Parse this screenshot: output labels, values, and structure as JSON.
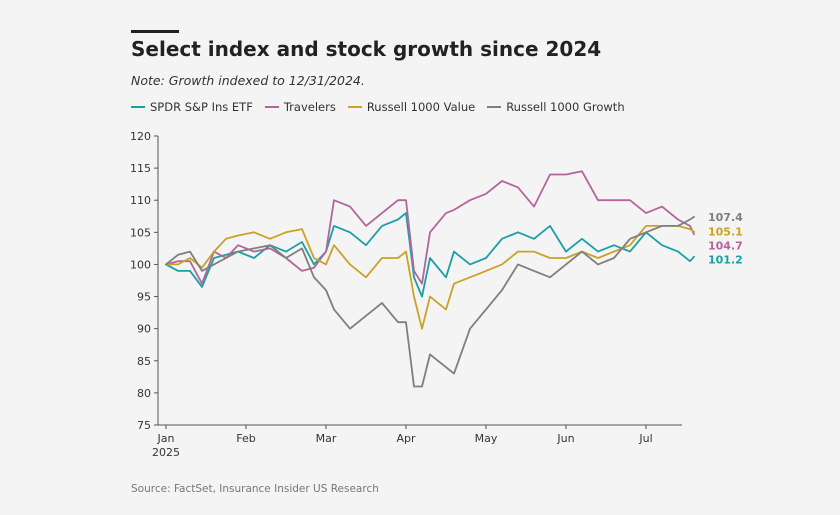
{
  "chart_data": {
    "type": "line",
    "title": "Select index and stock growth since 2024",
    "subtitle": "Note: Growth indexed to 12/31/2024.",
    "source": "Source: FactSet, Insurance Insider US Research",
    "xlabel": "",
    "ylabel": "",
    "ylim": [
      75,
      120
    ],
    "yticks": [
      75,
      80,
      85,
      90,
      95,
      100,
      105,
      110,
      115,
      120
    ],
    "xlim": [
      0,
      6.65
    ],
    "xticks": [
      {
        "pos": 0,
        "label": "Jan",
        "sublabel": "2025"
      },
      {
        "pos": 1,
        "label": "Feb"
      },
      {
        "pos": 2,
        "label": "Mar"
      },
      {
        "pos": 3,
        "label": "Apr"
      },
      {
        "pos": 4,
        "label": "May"
      },
      {
        "pos": 5,
        "label": "Jun"
      },
      {
        "pos": 6,
        "label": "Jul"
      }
    ],
    "grid": false,
    "legend_position": "top",
    "series": [
      {
        "name": "SPDR S&P Ins ETF",
        "color": "#1a9fa6",
        "end_label": "101.2",
        "x": [
          0,
          0.15,
          0.3,
          0.45,
          0.6,
          0.75,
          0.9,
          1.1,
          1.3,
          1.5,
          1.7,
          1.85,
          2.0,
          2.1,
          2.3,
          2.5,
          2.7,
          2.9,
          3.0,
          3.1,
          3.2,
          3.3,
          3.5,
          3.6,
          3.8,
          4.0,
          4.2,
          4.4,
          4.6,
          4.8,
          5.0,
          5.2,
          5.4,
          5.6,
          5.8,
          6.0,
          6.2,
          6.4,
          6.55,
          6.6
        ],
        "y": [
          100,
          99,
          99,
          96.5,
          101,
          101.5,
          102,
          101,
          103,
          102,
          103.5,
          100,
          102,
          106,
          105,
          103,
          106,
          107,
          108,
          98,
          95,
          101,
          98,
          102,
          100,
          101,
          104,
          105,
          104,
          106,
          102,
          104,
          102,
          103,
          102,
          105,
          103,
          102,
          100.5,
          101.2
        ]
      },
      {
        "name": "Travelers",
        "color": "#b4659c",
        "end_label": "104.7",
        "x": [
          0,
          0.15,
          0.3,
          0.45,
          0.6,
          0.75,
          0.9,
          1.1,
          1.3,
          1.5,
          1.7,
          1.85,
          2.0,
          2.1,
          2.3,
          2.5,
          2.7,
          2.9,
          3.0,
          3.1,
          3.2,
          3.3,
          3.5,
          3.6,
          3.8,
          4.0,
          4.2,
          4.4,
          4.6,
          4.8,
          5.0,
          5.2,
          5.4,
          5.6,
          5.8,
          6.0,
          6.2,
          6.4,
          6.55,
          6.6
        ],
        "y": [
          100,
          100.5,
          100.5,
          97,
          102,
          101,
          103,
          102,
          102.5,
          101,
          99,
          99.5,
          102,
          110,
          109,
          106,
          108,
          110,
          110,
          99,
          97,
          105,
          108,
          108.5,
          110,
          111,
          113,
          112,
          109,
          114,
          114,
          114.5,
          110,
          110,
          110,
          108,
          109,
          107,
          106,
          104.7
        ]
      },
      {
        "name": "Russell 1000 Value",
        "color": "#c9a227",
        "end_label": "105.1",
        "x": [
          0,
          0.15,
          0.3,
          0.45,
          0.6,
          0.75,
          0.9,
          1.1,
          1.3,
          1.5,
          1.7,
          1.85,
          2.0,
          2.1,
          2.3,
          2.5,
          2.7,
          2.9,
          3.0,
          3.1,
          3.2,
          3.3,
          3.5,
          3.6,
          3.8,
          4.0,
          4.2,
          4.4,
          4.6,
          4.8,
          5.0,
          5.2,
          5.4,
          5.6,
          5.8,
          6.0,
          6.2,
          6.4,
          6.55,
          6.6
        ],
        "y": [
          100,
          100,
          101,
          99.5,
          102,
          104,
          104.5,
          105,
          104,
          105,
          105.5,
          101,
          100,
          103,
          100,
          98,
          101,
          101,
          102,
          95,
          90,
          95,
          93,
          97,
          98,
          99,
          100,
          102,
          102,
          101,
          101,
          102,
          101,
          102,
          103,
          106,
          106,
          106,
          105.5,
          105.1
        ]
      },
      {
        "name": "Russell 1000 Growth",
        "color": "#7f7f7f",
        "end_label": "107.4",
        "x": [
          0,
          0.15,
          0.3,
          0.45,
          0.6,
          0.75,
          0.9,
          1.1,
          1.3,
          1.5,
          1.7,
          1.85,
          2.0,
          2.1,
          2.3,
          2.5,
          2.7,
          2.9,
          3.0,
          3.1,
          3.2,
          3.3,
          3.5,
          3.6,
          3.8,
          4.0,
          4.2,
          4.4,
          4.6,
          4.8,
          5.0,
          5.2,
          5.4,
          5.6,
          5.8,
          6.0,
          6.2,
          6.4,
          6.55,
          6.6
        ],
        "y": [
          100,
          101.5,
          102,
          99,
          100,
          101,
          102,
          102.5,
          103,
          101,
          102.5,
          98,
          96,
          93,
          90,
          92,
          94,
          91,
          91,
          81,
          81,
          86,
          84,
          83,
          90,
          93,
          96,
          100,
          99,
          98,
          100,
          102,
          100,
          101,
          104,
          105,
          106,
          106,
          107,
          107.4
        ]
      }
    ]
  }
}
